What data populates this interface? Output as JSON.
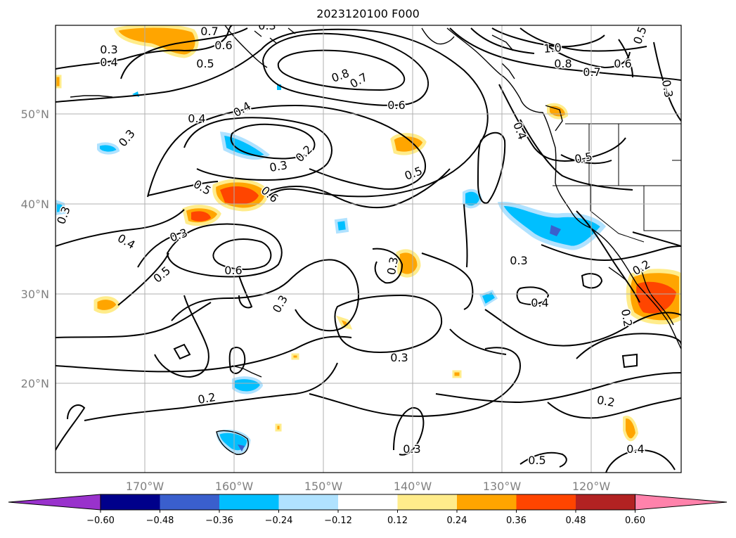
{
  "title": "2023120100 F000",
  "lat_labels": [
    "50°N",
    "40°N",
    "30°N",
    "20°N"
  ],
  "lon_labels": [
    "170°W",
    "160°W",
    "150°W",
    "140°W",
    "130°W",
    "120°W"
  ],
  "colorbar": {
    "tick_labels": [
      "−0.60",
      "−0.48",
      "−0.36",
      "−0.24",
      "−0.12",
      "0.12",
      "0.24",
      "0.36",
      "0.48",
      "0.60"
    ],
    "colors": [
      "#9932cc",
      "#00008b",
      "#3a5fcd",
      "#00bfff",
      "#b0e2ff",
      "#ffffff",
      "#ffec8b",
      "#ffa500",
      "#ff4500",
      "#b22222",
      "#ff82ab"
    ]
  },
  "contour_labels": [
    "0.3",
    "0.4",
    "0.6",
    "0.5",
    "0.7",
    "0.3",
    "0.8",
    "0.7",
    "0.6",
    "1.0",
    "0.8",
    "0.7",
    "0.6",
    "0.5",
    "0.3",
    "0.4",
    "0.4",
    "0.3",
    "0.2",
    "0.3",
    "0.5",
    "0.4",
    "0.5",
    "0.5",
    "0.6",
    "0.3",
    "0.3",
    "0.4",
    "0.6",
    "0.5",
    "0.3",
    "0.3",
    "0.4",
    "0.3",
    "0.2",
    "0.2",
    "0.3",
    "0.2",
    "0.2",
    "0.3",
    "0.5",
    "0.4"
  ]
}
